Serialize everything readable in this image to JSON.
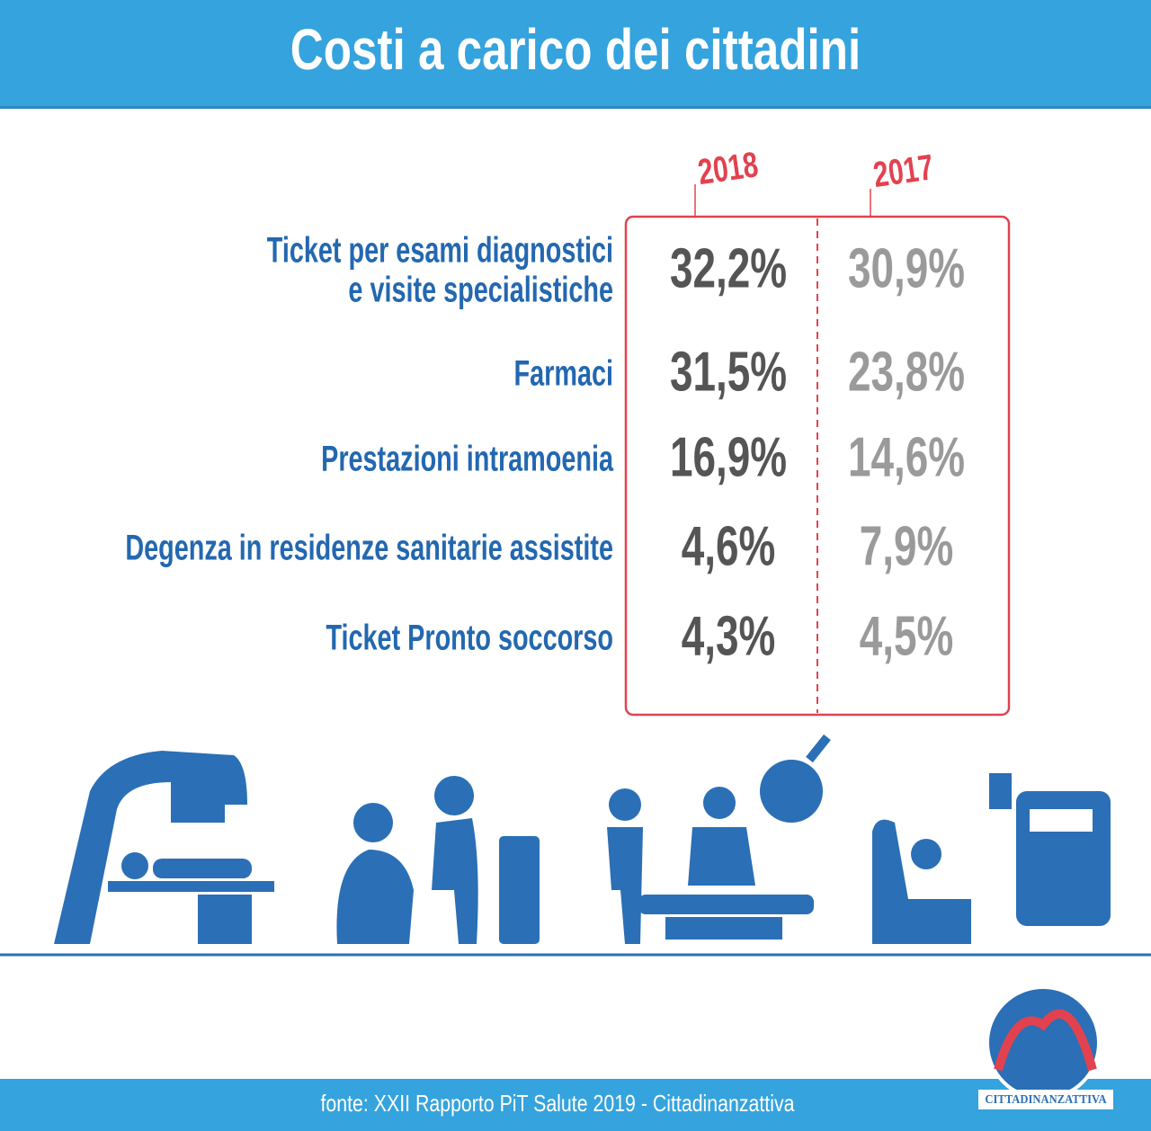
{
  "header": {
    "title": "Costi a carico dei cittadini"
  },
  "table": {
    "columns": [
      "2018",
      "2017"
    ],
    "rows": [
      {
        "label": [
          "Ticket per esami diagnostici",
          "e visite specialistiche"
        ],
        "values": [
          "32,2%",
          "30,9%"
        ]
      },
      {
        "label": [
          "Farmaci"
        ],
        "values": [
          "31,5%",
          "23,8%"
        ]
      },
      {
        "label": [
          "Prestazioni intramoenia"
        ],
        "values": [
          "16,9%",
          "14,6%"
        ]
      },
      {
        "label": [
          "Degenza in residenze sanitarie assistite"
        ],
        "values": [
          "4,6%",
          "7,9%"
        ]
      },
      {
        "label": [
          "Ticket Pronto soccorso"
        ],
        "values": [
          "4,3%",
          "4,5%"
        ]
      }
    ]
  },
  "footer": {
    "source": "fonte: XXII Rapporto PiT Salute 2019 - Cittadinanzattiva",
    "logo": "CITTADINANZATTIVA"
  }
}
